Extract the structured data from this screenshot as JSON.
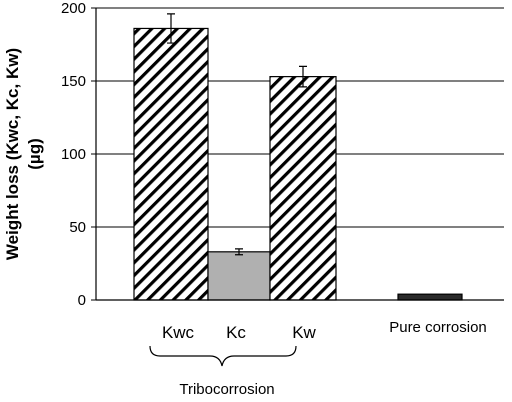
{
  "chart_data": {
    "type": "bar",
    "ylabel_lines": [
      "Weight loss (Kwc, Kc, Kw)",
      "(µg)"
    ],
    "xlabel": "",
    "ylim": [
      0,
      200
    ],
    "yticks": [
      0,
      50,
      100,
      150,
      200
    ],
    "yticks_labels": [
      "0",
      "50",
      "100",
      "150",
      "200"
    ],
    "grid": true,
    "legend": "none",
    "categories": [
      "Kwc",
      "Kc",
      "Kw",
      "Pure corrosion"
    ],
    "values": [
      186,
      33,
      153,
      4
    ],
    "error": [
      10,
      2,
      7,
      0
    ],
    "fills": [
      "hatch",
      "#b0b0b0",
      "hatch",
      "#2a2a2a"
    ],
    "group_label": "Tribocorrosion"
  }
}
